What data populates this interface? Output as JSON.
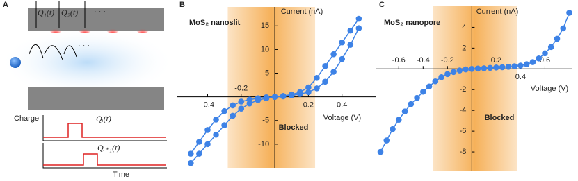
{
  "diagram": {
    "panel_label": "A",
    "channel_labels": [
      "Q₁(t)",
      "Q₂(t)",
      "· · ·"
    ],
    "hop_dots": "· · ·",
    "charge_axis": "Charge",
    "pulse_labels": [
      "Qᵢ(t)",
      "Qᵢ₊₁(t)"
    ],
    "time_axis": "Time"
  },
  "chart_data": [
    {
      "type": "line",
      "panel_label": "B",
      "title": "MoS₂ nanoslit",
      "y_label": "Current (nA)",
      "x_label": "Voltage (V)",
      "annotation": "Blocked",
      "blocked_range": [
        -0.28,
        0.24
      ],
      "band_color": "#f6b15a",
      "x": [
        -0.5,
        -0.45,
        -0.4,
        -0.35,
        -0.3,
        -0.25,
        -0.2,
        -0.15,
        -0.1,
        -0.05,
        0,
        0.05,
        0.1,
        0.15,
        0.2,
        0.25,
        0.3,
        0.35,
        0.4,
        0.45,
        0.5
      ],
      "series": [
        {
          "color": "#3d82e6",
          "values": [
            -12,
            -9.5,
            -7,
            -4.8,
            -3,
            -1.8,
            -1.0,
            -0.6,
            -0.3,
            -0.1,
            0,
            0.2,
            0.5,
            1.0,
            2.0,
            4.0,
            6.5,
            9,
            11.5,
            14,
            16.5
          ]
        },
        {
          "color": "#3d82e6",
          "values": [
            -14,
            -12,
            -10,
            -8,
            -6,
            -4,
            -2.5,
            -1.4,
            -0.7,
            -0.3,
            0,
            0.1,
            0.3,
            0.6,
            1.0,
            1.8,
            3.2,
            5.3,
            8,
            11,
            14.5
          ]
        }
      ],
      "xlim": [
        -0.58,
        0.6
      ],
      "ylim": [
        -15,
        19
      ],
      "xticks": [
        -0.4,
        -0.2,
        0.2,
        0.4
      ],
      "yticks": [
        15,
        10,
        5,
        -5,
        -10
      ]
    },
    {
      "type": "line",
      "panel_label": "C",
      "title": "MoS₂ nanopore",
      "y_label": "Current (nA)",
      "x_label": "Voltage (V)",
      "annotation": "Blocked",
      "blocked_range": [
        -0.32,
        0.37
      ],
      "band_color": "#f6b15a",
      "x": [
        -0.75,
        -0.7,
        -0.65,
        -0.6,
        -0.55,
        -0.5,
        -0.45,
        -0.4,
        -0.35,
        -0.3,
        -0.25,
        -0.2,
        -0.15,
        -0.1,
        -0.05,
        0,
        0.05,
        0.1,
        0.15,
        0.2,
        0.25,
        0.3,
        0.35,
        0.4,
        0.45,
        0.5,
        0.55,
        0.6,
        0.65,
        0.7,
        0.75,
        0.8
      ],
      "series": [
        {
          "color": "#3d82e6",
          "values": [
            -8.0,
            -6.9,
            -5.8,
            -4.9,
            -4.1,
            -3.4,
            -2.8,
            -2.2,
            -1.7,
            -1.2,
            -0.8,
            -0.5,
            -0.3,
            -0.15,
            -0.05,
            0,
            0.03,
            0.06,
            0.1,
            0.13,
            0.16,
            0.2,
            0.25,
            0.32,
            0.45,
            0.65,
            1.0,
            1.5,
            2.1,
            2.9,
            3.9,
            5.4
          ]
        }
      ],
      "xlim": [
        -0.79,
        0.82
      ],
      "ylim": [
        -9.8,
        6.1
      ],
      "xticks": [
        -0.6,
        -0.4,
        -0.2,
        0.2,
        0.4,
        0.6
      ],
      "yticks": [
        4,
        2,
        -2,
        -4,
        -6,
        -8
      ]
    }
  ]
}
